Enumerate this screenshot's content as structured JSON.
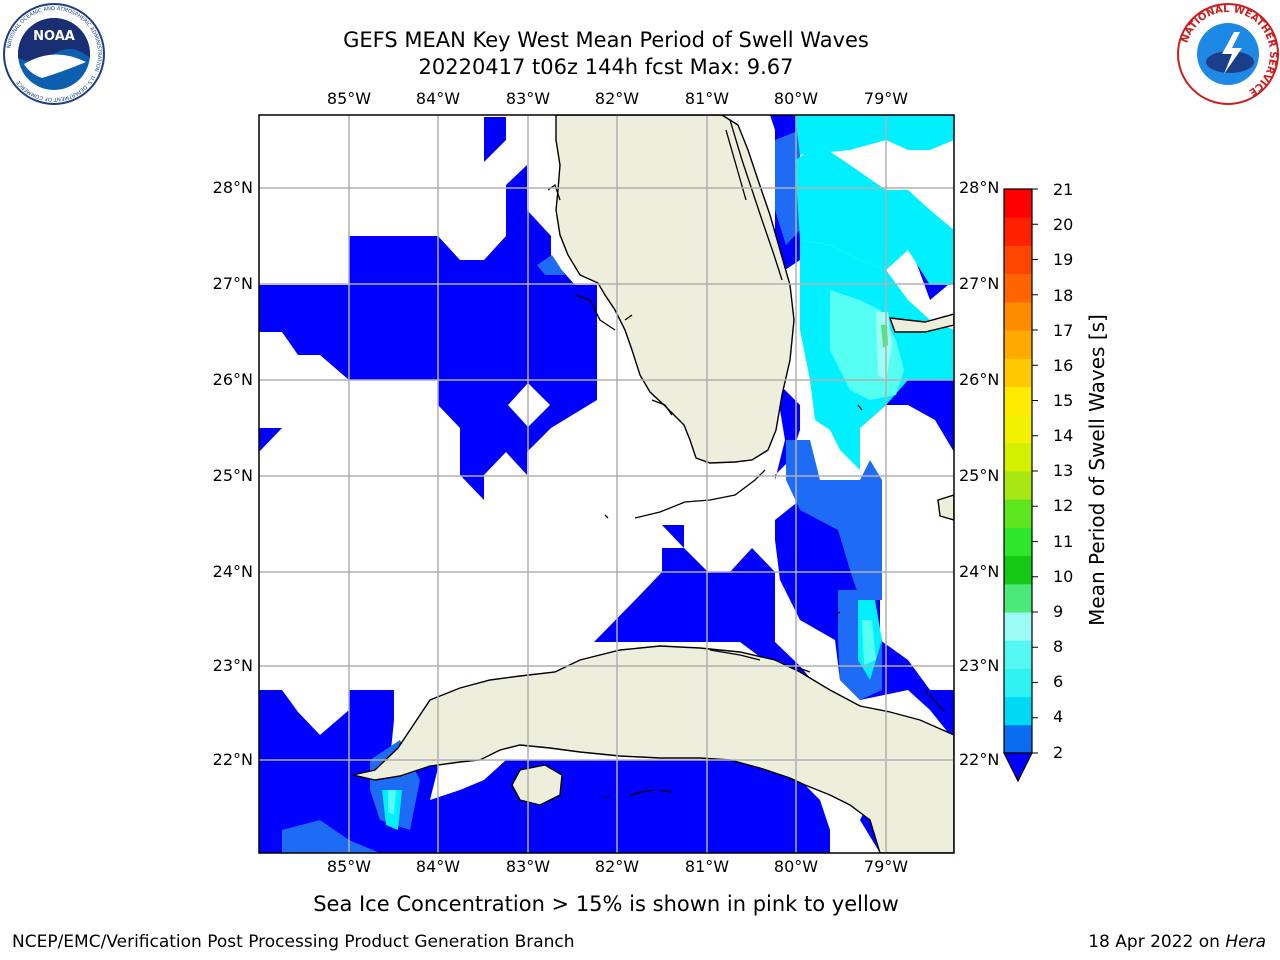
{
  "title": {
    "line1": "GEFS MEAN Key West Mean Period of Swell Waves",
    "line2": "20220417 t06z 144h fcst   Max: 9.67"
  },
  "map": {
    "lon_labels": [
      "85°W",
      "84°W",
      "83°W",
      "82°W",
      "81°W",
      "80°W",
      "79°W"
    ],
    "lat_labels": [
      "28°N",
      "27°N",
      "26°N",
      "25°N",
      "24°N",
      "23°N",
      "22°N"
    ],
    "colors": {
      "land": "#eeeedd",
      "ocean_blank": "#ffffff",
      "grid": "#b0b0b0"
    }
  },
  "colorbar": {
    "label": "Mean Period of Swell Waves [s]",
    "ticks": [
      "21",
      "20",
      "19",
      "18",
      "17",
      "16",
      "15",
      "14",
      "13",
      "12",
      "11",
      "10",
      "9",
      "8",
      "6",
      "4",
      "2"
    ],
    "colors_bottom_to_top": [
      "#0a6cf0",
      "#00d9f5",
      "#2ef2f2",
      "#55f7f2",
      "#9afcf5",
      "#4ce87a",
      "#14c814",
      "#2ee62e",
      "#5ee61e",
      "#a8e614",
      "#d2f000",
      "#f2f200",
      "#ffeb00",
      "#ffc800",
      "#ffaa00",
      "#ff8c00",
      "#ff6400",
      "#ff4600",
      "#ff2000",
      "#ff0000"
    ],
    "extend_color": "#0000ff"
  },
  "swell_colors": {
    "dark_blue": "#0000ff",
    "blue": "#1e6cf5",
    "cyan": "#00f0ff",
    "light_cyan": "#55fff2",
    "pale": "#a0fff5",
    "green": "#4ce87a"
  },
  "footer": {
    "note": "Sea Ice Concentration > 15% is shown in pink to yellow",
    "left": "NCEP/EMC/Verification Post Processing Product Generation Branch",
    "right_prefix": "18 Apr 2022 on ",
    "right_host": "Hera"
  },
  "logos": {
    "noaa": "NOAA",
    "noaa_ring": "NATIONAL OCEANIC AND ATMOSPHERIC ADMINISTRATION · U.S. DEPARTMENT OF COMMERCE",
    "nws_ring": "NATIONAL WEATHER SERVICE"
  }
}
